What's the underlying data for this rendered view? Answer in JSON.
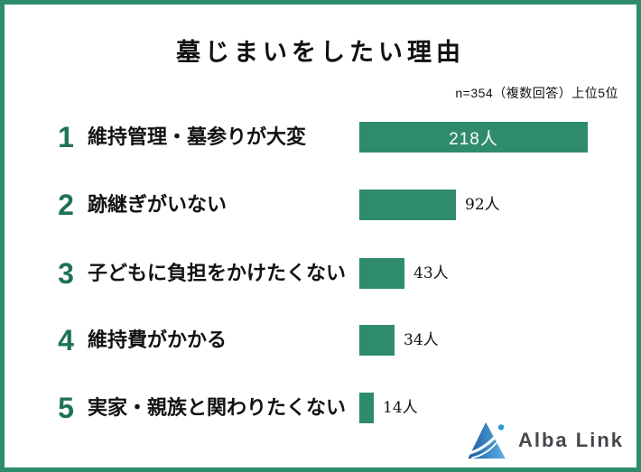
{
  "header": {
    "title": "墓じまいをしたい理由",
    "note": "n=354（複数回答）上位5位"
  },
  "chart_data": {
    "type": "bar",
    "orientation": "horizontal",
    "title": "墓じまいをしたい理由",
    "note": "n=354（複数回答）上位5位",
    "sample_size": 354,
    "unit": "人",
    "categories": [
      "維持管理・墓参りが大変",
      "跡継ぎがいない",
      "子どもに負担をかけたくない",
      "維持費がかかる",
      "実家・親族と関わりたくない"
    ],
    "values": [
      218,
      92,
      43,
      34,
      14
    ],
    "rows": [
      {
        "rank": "1",
        "label": "維持管理・墓参りが大変",
        "value": 218,
        "value_label": "218人"
      },
      {
        "rank": "2",
        "label": "跡継ぎがいない",
        "value": 92,
        "value_label": "92人"
      },
      {
        "rank": "3",
        "label": "子どもに負担をかけたくない",
        "value": 43,
        "value_label": "43人"
      },
      {
        "rank": "4",
        "label": "維持費がかかる",
        "value": 34,
        "value_label": "34人"
      },
      {
        "rank": "5",
        "label": "実家・親族と関わりたくない",
        "value": 14,
        "value_label": "14人"
      }
    ],
    "value_label_position": [
      "inside",
      "outside",
      "outside",
      "outside",
      "outside"
    ],
    "xlim": [
      0,
      230
    ],
    "grid": false,
    "legend": false
  },
  "footer": {
    "brand": "Alba Link"
  },
  "colors": {
    "accent_green": "#2E8B6E",
    "border_green": "#2E8B6E",
    "rank_green": "#1F7258",
    "bar_value_text": "#FFFFFF",
    "text": "#111111",
    "logo_text": "#43484D",
    "logo_blue_dark": "#1D5AA0",
    "logo_blue_light": "#59B2E5",
    "logo_dot_blue": "#2D9AD8"
  }
}
